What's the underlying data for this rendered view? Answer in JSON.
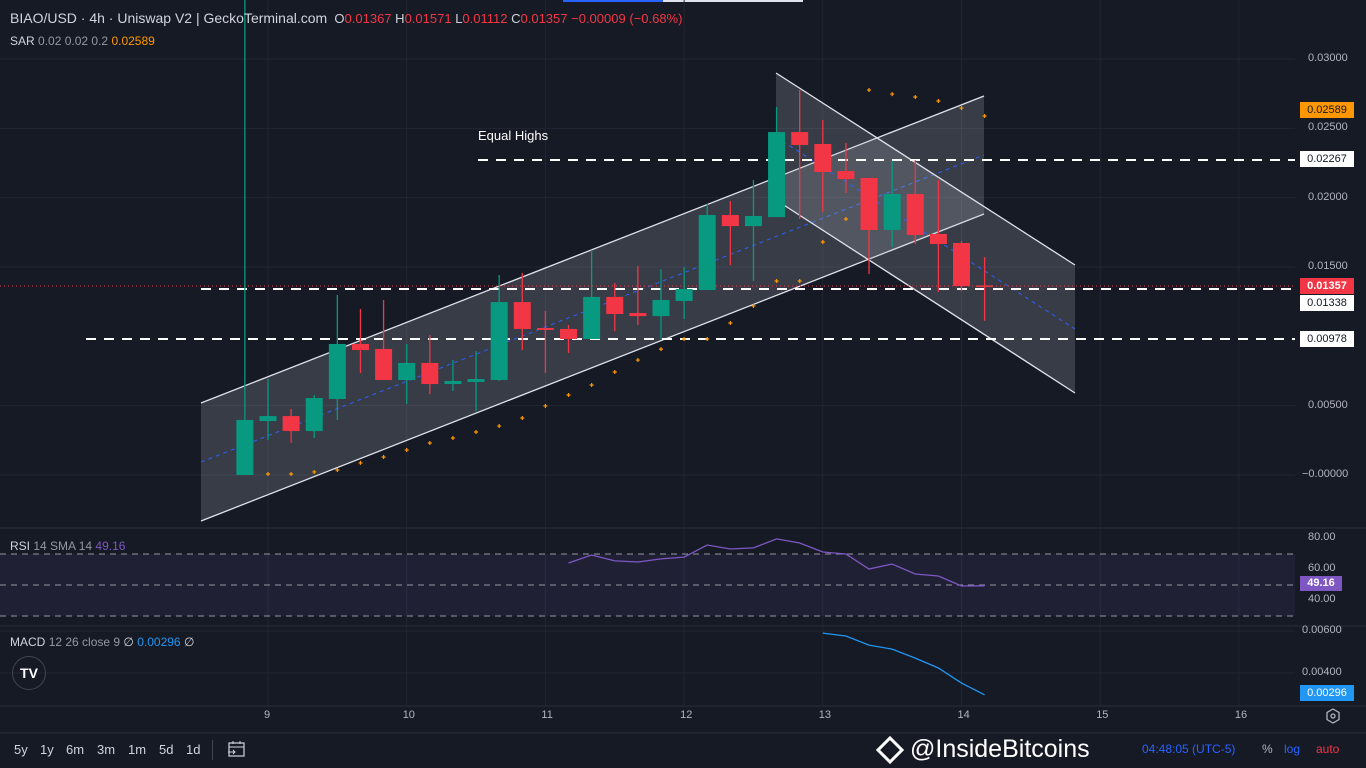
{
  "header": {
    "symbol": "BIAO/USD · 4h · Uniswap V2 | GeckoTerminal.com",
    "o_label": "O",
    "o": "0.01367",
    "h_label": "H",
    "h": "0.01571",
    "l_label": "L",
    "l": "0.01112",
    "c_label": "C",
    "c": "0.01357",
    "change": "−0.00009 (−0.68%)"
  },
  "sar_legend": {
    "name": "SAR",
    "params": "0.02 0.02 0.2",
    "value": "0.02589"
  },
  "rsi_legend": {
    "name": "RSI",
    "params": "14 SMA 14",
    "value": "49.16"
  },
  "macd_legend": {
    "name": "MACD",
    "params": "12 26 close 9",
    "sym1": "∅",
    "value": "0.00296",
    "sym2": "∅"
  },
  "annotations": {
    "equal_highs": "Equal Highs"
  },
  "colors": {
    "up": "#089981",
    "down": "#f23645",
    "sar": "#ff9800",
    "rsi": "#7e57c2",
    "macd": "#2196f3",
    "background": "#161a25"
  },
  "price_badges": {
    "sar": "0.02589",
    "equal_highs_level": "0.02267",
    "last_price": "0.01357",
    "support_level": "0.01338",
    "lower_level": "0.00978",
    "rsi": "49.16",
    "macd": "0.00296"
  },
  "bottom_bar": {
    "ranges": [
      "5y",
      "1y",
      "6m",
      "3m",
      "1m",
      "5d",
      "1d"
    ],
    "clock": "04:48:05 (UTC-5)",
    "percent": "%",
    "log": "log",
    "auto": "auto",
    "watermark": "@InsideBitcoins"
  },
  "chart_data": [
    {
      "type": "candlestick",
      "title": "BIAO/USD · 4h · Uniswap V2",
      "ylim": [
        -0.002,
        0.032
      ],
      "y_ticks": [
        "0.03000",
        "0.02500",
        "0.02000",
        "0.01500",
        "0.00500",
        "−0.00000"
      ],
      "x_ticks": [
        "9",
        "10",
        "11",
        "12",
        "13",
        "14",
        "15",
        "16"
      ],
      "horizontal_levels": [
        0.02267,
        0.01338,
        0.00978
      ],
      "last_price_line": 0.01357,
      "candles": [
        {
          "t": "8 20:00",
          "o": 0.0,
          "h": 0.0345,
          "l": 0.0,
          "c": 0.00397
        },
        {
          "t": "9 00:00",
          "o": 0.00389,
          "h": 0.00692,
          "l": 0.00252,
          "c": 0.00425,
          "sar": 7e-05
        },
        {
          "t": "9 04:00",
          "o": 0.00425,
          "h": 0.00476,
          "l": 0.00231,
          "c": 0.00317,
          "sar": 7e-05
        },
        {
          "t": "9 08:00",
          "o": 0.00317,
          "h": 0.00577,
          "l": 0.00267,
          "c": 0.00555,
          "sar": 0.00022
        },
        {
          "t": "9 12:00",
          "o": 0.00548,
          "h": 0.01298,
          "l": 0.00397,
          "c": 0.00945,
          "sar": 0.00036
        },
        {
          "t": "9 16:00",
          "o": 0.00945,
          "h": 0.01197,
          "l": 0.00735,
          "c": 0.00901,
          "sar": 0.00087
        },
        {
          "t": "9 20:00",
          "o": 0.00909,
          "h": 0.01262,
          "l": 0.00685,
          "c": 0.00685,
          "sar": 0.0013
        },
        {
          "t": "10 00:00",
          "o": 0.00685,
          "h": 0.00945,
          "l": 0.00512,
          "c": 0.00808,
          "sar": 0.0018
        },
        {
          "t": "10 04:00",
          "o": 0.00808,
          "h": 0.0101,
          "l": 0.00584,
          "c": 0.00656,
          "sar": 0.00231
        },
        {
          "t": "10 08:00",
          "o": 0.00656,
          "h": 0.00829,
          "l": 0.00606,
          "c": 0.00678,
          "sar": 0.00267
        },
        {
          "t": "10 12:00",
          "o": 0.00671,
          "h": 0.00894,
          "l": 0.00461,
          "c": 0.00692,
          "sar": 0.0031
        },
        {
          "t": "10 16:00",
          "o": 0.00685,
          "h": 0.01442,
          "l": 0.00678,
          "c": 0.01247,
          "sar": 0.00353
        },
        {
          "t": "10 20:00",
          "o": 0.01247,
          "h": 0.01457,
          "l": 0.00901,
          "c": 0.01053,
          "sar": 0.00411
        },
        {
          "t": "11 00:00",
          "o": 0.0106,
          "h": 0.01183,
          "l": 0.00735,
          "c": 0.01046,
          "sar": 0.00498
        },
        {
          "t": "11 04:00",
          "o": 0.01053,
          "h": 0.01082,
          "l": 0.0088,
          "c": 0.00981,
          "sar": 0.00577,
          "rsi": 63.9
        },
        {
          "t": "11 08:00",
          "o": 0.00981,
          "h": 0.01622,
          "l": 0.00981,
          "c": 0.01284,
          "sar": 0.00649,
          "rsi": 69.0
        },
        {
          "t": "11 12:00",
          "o": 0.01284,
          "h": 0.01384,
          "l": 0.01038,
          "c": 0.01161,
          "sar": 0.00743,
          "rsi": 65.2
        },
        {
          "t": "11 16:00",
          "o": 0.01168,
          "h": 0.01507,
          "l": 0.01082,
          "c": 0.01146,
          "sar": 0.00829,
          "rsi": 64.5
        },
        {
          "t": "11 20:00",
          "o": 0.01146,
          "h": 0.01485,
          "l": 0.00981,
          "c": 0.01262,
          "sar": 0.00908,
          "rsi": 66.5
        },
        {
          "t": "12 00:00",
          "o": 0.01255,
          "h": 0.015,
          "l": 0.01125,
          "c": 0.01341,
          "sar": 0.00981,
          "rsi": 67.7
        },
        {
          "t": "12 04:00",
          "o": 0.01334,
          "h": 0.01954,
          "l": 0.01334,
          "c": 0.01875,
          "sar": 0.00981,
          "rsi": 75.5
        },
        {
          "t": "12 08:00",
          "o": 0.01875,
          "h": 0.01976,
          "l": 0.01514,
          "c": 0.01795,
          "sar": 0.01096,
          "rsi": 72.9
        },
        {
          "t": "12 12:00",
          "o": 0.01795,
          "h": 0.02127,
          "l": 0.01399,
          "c": 0.01868,
          "sar": 0.01219,
          "rsi": 73.6
        },
        {
          "t": "12 16:00",
          "o": 0.0186,
          "h": 0.02654,
          "l": 0.0186,
          "c": 0.02473,
          "sar": 0.01399,
          "rsi": 79.4
        },
        {
          "t": "12 20:00",
          "o": 0.02473,
          "h": 0.02776,
          "l": 0.01846,
          "c": 0.0238,
          "sar": 0.01399,
          "rsi": 76.8
        },
        {
          "t": "13 00:00",
          "o": 0.02387,
          "h": 0.0256,
          "l": 0.01896,
          "c": 0.02185,
          "sar": 0.0168,
          "rsi": 71.0,
          "macd": 0.0059
        },
        {
          "t": "13 04:00",
          "o": 0.02192,
          "h": 0.02394,
          "l": 0.02033,
          "c": 0.02134,
          "sar": 0.01846,
          "rsi": 69.7,
          "macd": 0.00576
        },
        {
          "t": "13 08:00",
          "o": 0.02142,
          "h": 0.02142,
          "l": 0.01449,
          "c": 0.01767,
          "sar": 0.02776,
          "rsi": 60.0,
          "macd": 0.00533
        },
        {
          "t": "13 12:00",
          "o": 0.01767,
          "h": 0.02264,
          "l": 0.01644,
          "c": 0.02026,
          "sar": 0.02747,
          "rsi": 63.2,
          "macd": 0.00514
        },
        {
          "t": "13 16:00",
          "o": 0.02026,
          "h": 0.02271,
          "l": 0.01666,
          "c": 0.01731,
          "sar": 0.02726,
          "rsi": 56.8,
          "macd": 0.00471
        },
        {
          "t": "13 20:00",
          "o": 0.01738,
          "h": 0.02127,
          "l": 0.0132,
          "c": 0.01666,
          "sar": 0.02697,
          "rsi": 55.5,
          "macd": 0.00424
        },
        {
          "t": "14 00:00",
          "o": 0.01673,
          "h": 0.01687,
          "l": 0.01327,
          "c": 0.01363,
          "sar": 0.02646,
          "rsi": 49.0,
          "macd": 0.00352
        },
        {
          "t": "14 04:00",
          "o": 0.01367,
          "h": 0.01571,
          "l": 0.01112,
          "c": 0.01357,
          "sar": 0.02589,
          "rsi": 49.16,
          "macd": 0.00296
        }
      ]
    },
    {
      "type": "line",
      "series": [
        {
          "name": "RSI",
          "values_from": "candles.rsi"
        }
      ],
      "ylim": [
        25,
        85
      ],
      "y_ticks": [
        "80.00",
        "60.00",
        "40.00"
      ],
      "bands": [
        70,
        50,
        30
      ]
    },
    {
      "type": "line",
      "series": [
        {
          "name": "MACD",
          "values_from": "candles.macd"
        }
      ],
      "y_ticks": [
        "0.00600",
        "0.00400"
      ]
    }
  ]
}
